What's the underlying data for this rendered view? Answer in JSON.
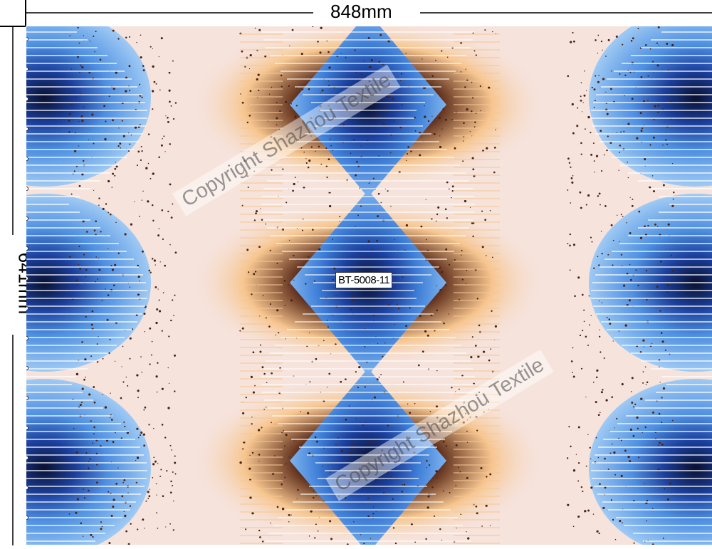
{
  "dimensions": {
    "width_label": "848mm",
    "height_label": "641mm"
  },
  "design": {
    "code": "BT-5008-11",
    "watermark": "Copyright Shazhou Textile",
    "colors": {
      "background": "#f6e3dc",
      "deep_navy": "#0a1030",
      "royal_blue": "#1b3f9c",
      "sky_blue": "#7fb4ee",
      "peach": "#f7c690",
      "speckle_brown": "#4a2418"
    }
  }
}
